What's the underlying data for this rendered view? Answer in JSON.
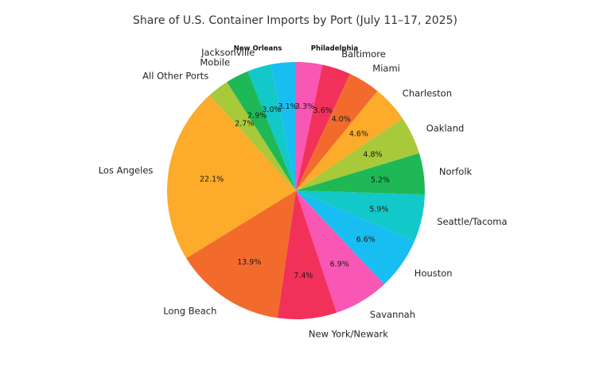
{
  "chart_data": {
    "type": "pie",
    "title": "Share of U.S. Container Imports by Port (July 11–17, 2025)",
    "start_angle_deg": 90,
    "direction": "clockwise",
    "slices": [
      {
        "label": "Philadelphia",
        "value": 3.3,
        "pct_label": "3.3%",
        "color": "#f857b5"
      },
      {
        "label": "Baltimore",
        "value": 3.6,
        "pct_label": "3.6%",
        "color": "#f2315a"
      },
      {
        "label": "Miami",
        "value": 4.0,
        "pct_label": "4.0%",
        "color": "#f26b2d"
      },
      {
        "label": "Charleston",
        "value": 4.6,
        "pct_label": "4.6%",
        "color": "#fcab2a"
      },
      {
        "label": "Oakland",
        "value": 4.8,
        "pct_label": "4.8%",
        "color": "#a8c93a"
      },
      {
        "label": "Norfolk",
        "value": 5.2,
        "pct_label": "5.2%",
        "color": "#1fb856"
      },
      {
        "label": "Seattle/Tacoma",
        "value": 5.9,
        "pct_label": "5.9%",
        "color": "#13c8c8"
      },
      {
        "label": "Houston",
        "value": 6.6,
        "pct_label": "6.6%",
        "color": "#18bef2"
      },
      {
        "label": "Savannah",
        "value": 6.9,
        "pct_label": "6.9%",
        "color": "#f857b5"
      },
      {
        "label": "New York/Newark",
        "value": 7.4,
        "pct_label": "7.4%",
        "color": "#f2315a"
      },
      {
        "label": "Long Beach",
        "value": 13.9,
        "pct_label": "13.9%",
        "color": "#f26b2d"
      },
      {
        "label": "Los Angeles",
        "value": 22.1,
        "pct_label": "22.1%",
        "color": "#fcab2a"
      },
      {
        "label": "All Other Ports",
        "value": 2.7,
        "pct_label": "2.7%",
        "color": "#a8c93a"
      },
      {
        "label": "Mobile",
        "value": 2.9,
        "pct_label": "2.9%",
        "color": "#1fb856"
      },
      {
        "label": "Jacksonville",
        "value": 3.0,
        "pct_label": "3.0%",
        "color": "#13c8c8"
      },
      {
        "label": "New Orleans",
        "value": 3.1,
        "pct_label": "3.1%",
        "color": "#18bef2"
      }
    ]
  }
}
